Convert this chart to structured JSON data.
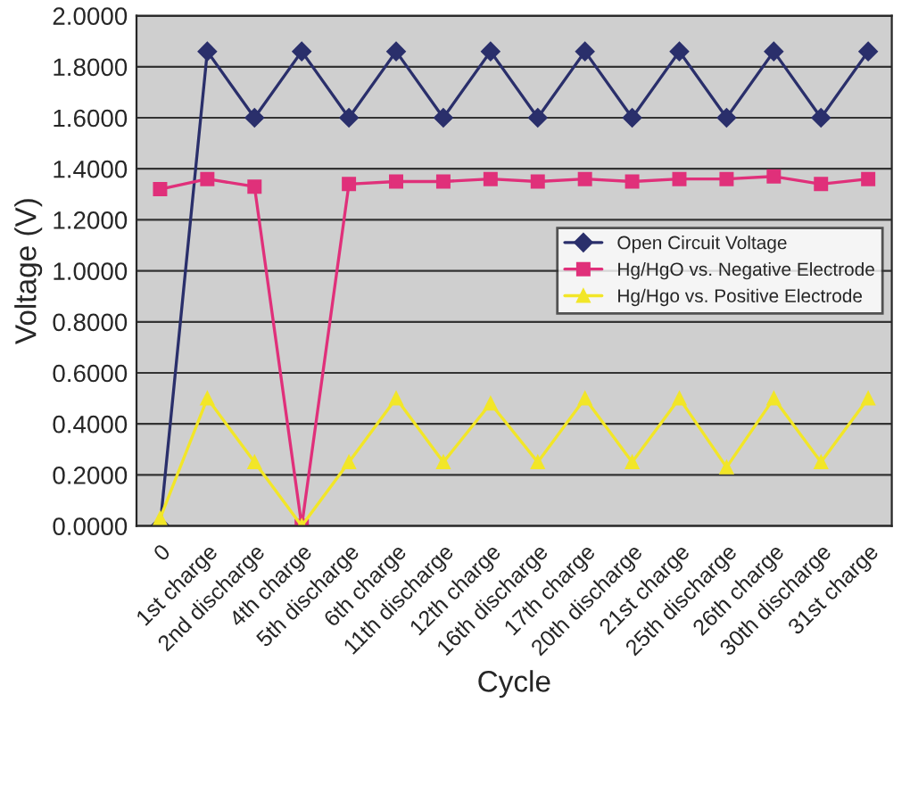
{
  "chart_data": {
    "type": "line",
    "xlabel": "Cycle",
    "ylabel": "Voltage (V)",
    "categories": [
      "0",
      "1st charge",
      "2nd discharge",
      "4th charge",
      "5th discharge",
      "6th charge",
      "11th discharge",
      "12th charge",
      "16th discharge",
      "17th charge",
      "20th discharge",
      "21st charge",
      "25th discharge",
      "26th charge",
      "30th discharge",
      "31st charge"
    ],
    "series": [
      {
        "name": "Open Circuit Voltage",
        "color": "#2a2f6b",
        "marker": "diamond",
        "values": [
          0.0,
          1.86,
          1.6,
          1.86,
          1.6,
          1.86,
          1.6,
          1.86,
          1.6,
          1.86,
          1.6,
          1.86,
          1.6,
          1.86,
          1.6,
          1.86
        ]
      },
      {
        "name": "Hg/HgO vs. Negative Electrode",
        "color": "#e0307a",
        "marker": "square",
        "values": [
          1.32,
          1.36,
          1.33,
          0.0,
          1.34,
          1.35,
          1.35,
          1.36,
          1.35,
          1.36,
          1.35,
          1.36,
          1.36,
          1.37,
          1.34,
          1.36
        ]
      },
      {
        "name": "Hg/Hgo vs. Positive Electrode",
        "color": "#f2e628",
        "marker": "triangle",
        "values": [
          0.03,
          0.5,
          0.25,
          0.0,
          0.25,
          0.5,
          0.25,
          0.48,
          0.25,
          0.5,
          0.25,
          0.5,
          0.23,
          0.5,
          0.25,
          0.5
        ]
      }
    ],
    "ylim": [
      0,
      2
    ],
    "yticks": [
      {
        "value": 0,
        "label": "0.0000"
      },
      {
        "value": 0.2,
        "label": "0.2000"
      },
      {
        "value": 0.4,
        "label": "0.4000"
      },
      {
        "value": 0.6,
        "label": "0.6000"
      },
      {
        "value": 0.8,
        "label": "0.8000"
      },
      {
        "value": 1.0,
        "label": "1.0000"
      },
      {
        "value": 1.2,
        "label": "1.2000"
      },
      {
        "value": 1.4,
        "label": "1.4000"
      },
      {
        "value": 1.6,
        "label": "1.6000"
      },
      {
        "value": 1.8,
        "label": "1.8000"
      },
      {
        "value": 2.0,
        "label": "2.0000"
      }
    ],
    "grid": "y",
    "legend": "center right"
  }
}
